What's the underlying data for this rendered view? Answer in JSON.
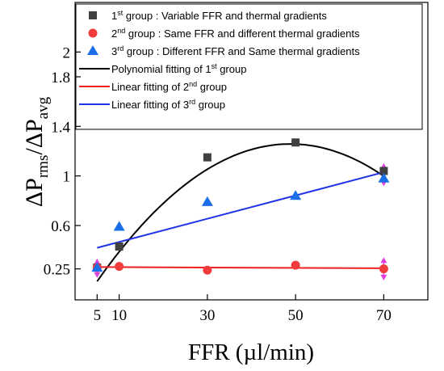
{
  "chart_data": {
    "type": "scatter",
    "xlabel": "FFR (µl/min)",
    "ylabel": {
      "delta1": "ΔP",
      "sub1": "rms",
      "slash": "/",
      "delta2": "ΔP",
      "sub2": "avg"
    },
    "xlim": [
      0,
      80
    ],
    "ylim": [
      0,
      2.4
    ],
    "xticks": [
      5,
      10,
      30,
      50,
      70
    ],
    "xtick_labels": [
      "5",
      "10",
      "30",
      "50",
      "70"
    ],
    "yticks": [
      0.25,
      0.6,
      1,
      1.4,
      1.8,
      2
    ],
    "ytick_labels": [
      "0.25",
      "0.6",
      "1",
      "1.4",
      "1.8",
      "2"
    ],
    "grid": false,
    "legend_position": "top",
    "colors": {
      "group1": "#404040",
      "group2": "#f03c3c",
      "group3": "#1a6fe8",
      "poly1": "#000000",
      "lin2": "#ee2020",
      "lin3": "#1f32e6",
      "errorbar": "#e040e0"
    },
    "series": [
      {
        "name": "group1",
        "marker": "square",
        "legend": {
          "pre": "1",
          "sup": "st",
          "post": " group : Variable FFR and thermal gradients"
        },
        "x": [
          5,
          10,
          30,
          50,
          70
        ],
        "y": [
          0.26,
          0.43,
          1.15,
          1.27,
          1.04
        ]
      },
      {
        "name": "group2",
        "marker": "circle",
        "legend": {
          "pre": "2",
          "sup": "nd",
          "post": " group : Same FFR and different thermal gradients"
        },
        "x": [
          5,
          10,
          30,
          50,
          70
        ],
        "y": [
          0.26,
          0.27,
          0.24,
          0.28,
          0.25
        ]
      },
      {
        "name": "group3",
        "marker": "triangle",
        "legend": {
          "pre": "3",
          "sup": "rd",
          "post": " group : Different FFR and Same thermal gradients"
        },
        "x": [
          5,
          10,
          30,
          50,
          70
        ],
        "y": [
          0.26,
          0.59,
          0.79,
          0.84,
          0.98
        ]
      }
    ],
    "fits": [
      {
        "name": "poly1",
        "kind": "polynomial",
        "coefficients": [
          -0.118,
          0.0564,
          -0.000578
        ],
        "x_range": [
          5,
          70
        ],
        "legend": {
          "pre": "Polynomial fitting of 1",
          "sup": "st",
          "post": " group"
        }
      },
      {
        "name": "lin2",
        "kind": "linear",
        "points": [
          [
            5,
            0.265
          ],
          [
            70,
            0.255
          ]
        ],
        "legend": {
          "pre": "Linear fitting of 2",
          "sup": "nd",
          "post": " group"
        }
      },
      {
        "name": "lin3",
        "kind": "linear",
        "points": [
          [
            5,
            0.42
          ],
          [
            70,
            1.03
          ]
        ],
        "legend": {
          "pre": "Linear fitting of 3",
          "sup": "rd",
          "post": " group"
        }
      }
    ],
    "error_bars": [
      {
        "x": 5,
        "y": 0.26,
        "low": 0.19,
        "high": 0.32
      },
      {
        "x": 70,
        "y": 1.01,
        "low": 0.93,
        "high": 1.09
      },
      {
        "x": 70,
        "y": 0.25,
        "low": 0.17,
        "high": 0.33
      }
    ]
  }
}
